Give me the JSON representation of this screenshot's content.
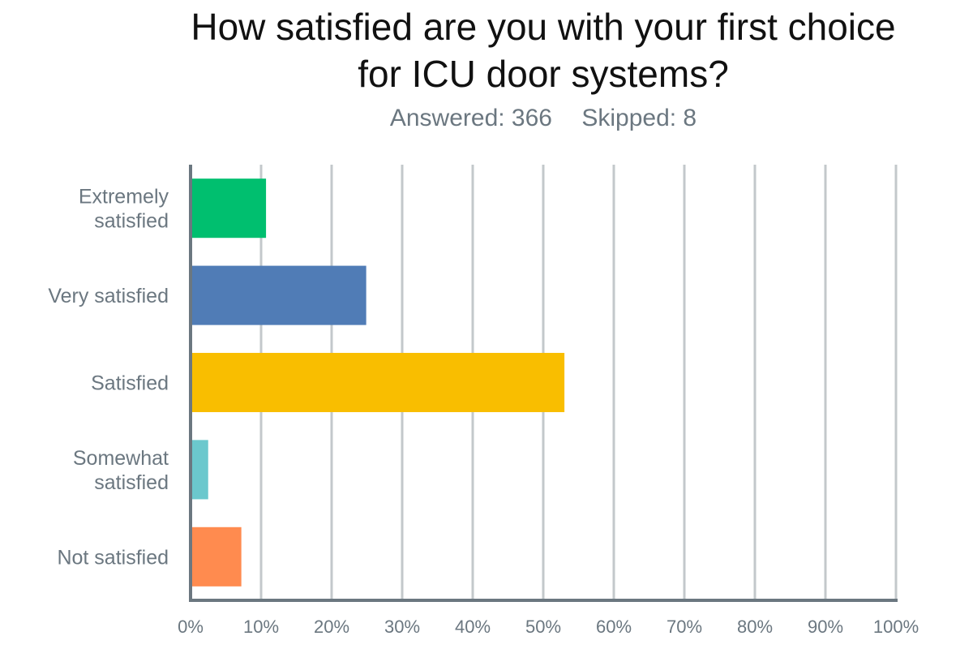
{
  "title_lines": [
    "How satisfied are you with your first choice",
    "for ICU door systems?"
  ],
  "stats": {
    "answered": "Answered: 366",
    "skipped": "Skipped: 8"
  },
  "chart_data": {
    "type": "bar",
    "orientation": "horizontal",
    "title": "How satisfied are you with your first choice for ICU door systems?",
    "categories": [
      "Extremely satisfied",
      "Very satisfied",
      "Satisfied",
      "Somewhat satisfied",
      "Not satisfied"
    ],
    "category_label_lines": [
      [
        "Extremely",
        "satisfied"
      ],
      [
        "Very satisfied"
      ],
      [
        "Satisfied"
      ],
      [
        "Somewhat",
        "satisfied"
      ],
      [
        "Not satisfied"
      ]
    ],
    "values": [
      10.7,
      24.9,
      53.0,
      2.5,
      7.2
    ],
    "colors": [
      "#00bf6f",
      "#507cb6",
      "#f9be00",
      "#6bc8cd",
      "#ff8b4f"
    ],
    "xlim": [
      0,
      100
    ],
    "xticks": [
      0,
      10,
      20,
      30,
      40,
      50,
      60,
      70,
      80,
      90,
      100
    ],
    "xtick_labels": [
      "0%",
      "10%",
      "20%",
      "30%",
      "40%",
      "50%",
      "60%",
      "70%",
      "80%",
      "90%",
      "100%"
    ],
    "grid": true,
    "legend": "none"
  }
}
